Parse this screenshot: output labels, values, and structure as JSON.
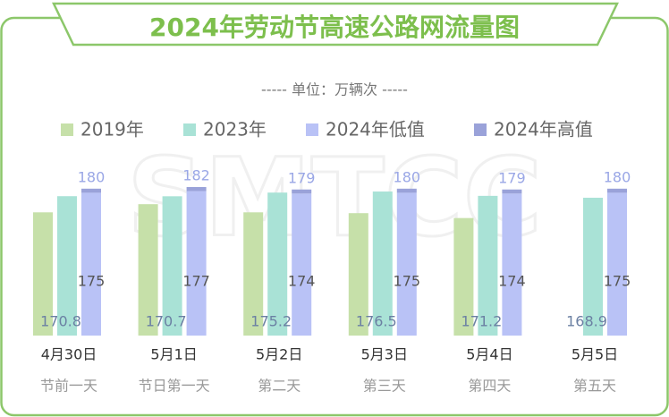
{
  "chart_data": {
    "type": "bar",
    "title": "2024年劳动节高速公路网流量图",
    "subtitle": "----- 单位：万辆次 -----",
    "watermark": "SMTCC",
    "categories": [
      "4月30日",
      "5月1日",
      "5月2日",
      "5月3日",
      "5月4日",
      "5月5日"
    ],
    "day_labels": [
      "节前一天",
      "节日第一天",
      "第二天",
      "第三天",
      "第四天",
      "第五天"
    ],
    "series": [
      {
        "name": "2019年",
        "color": "#c6e0a9",
        "values": [
          151,
          161,
          151,
          150,
          144,
          null
        ]
      },
      {
        "name": "2023年",
        "color": "#a9e2d6",
        "values": [
          170.8,
          170.7,
          175.2,
          176.5,
          171.2,
          168.9
        ]
      },
      {
        "name": "2024年低值",
        "color": "#b9c2f6",
        "values": [
          175,
          177,
          174,
          175,
          174,
          175
        ]
      },
      {
        "name": "2024年高值",
        "color": "#9aa2d9",
        "values": [
          180,
          182,
          179,
          180,
          179,
          180
        ]
      }
    ]
  }
}
